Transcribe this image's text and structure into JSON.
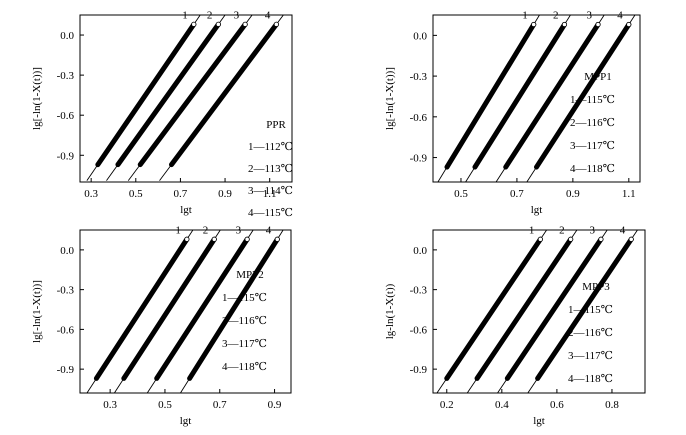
{
  "chart_data": [
    {
      "type": "line",
      "xlim": [
        0.25,
        1.2
      ],
      "ylim": [
        -1.1,
        0.15
      ],
      "xticks": [
        0.3,
        0.5,
        0.7,
        0.9,
        1.1
      ],
      "xtick_labels": [
        "0.3",
        "0.5",
        "0.7",
        "0.9",
        "1.1"
      ],
      "yticks": [
        0.0,
        -0.3,
        -0.6,
        -0.9
      ],
      "ytick_labels": [
        "0.0",
        "-0.3",
        "-0.6",
        "-0.9"
      ],
      "xlabel": "lgt",
      "ylabel": "lg[-ln(1-X(t))]",
      "legend_title": "PPR",
      "legend": [
        "1—112℃",
        "2—113℃",
        "3—114℃",
        "4—115℃"
      ],
      "series": [
        {
          "name": "1",
          "x": [
            0.33,
            0.76
          ],
          "y": [
            -0.97,
            0.08
          ]
        },
        {
          "name": "2",
          "x": [
            0.42,
            0.87
          ],
          "y": [
            -0.97,
            0.08
          ]
        },
        {
          "name": "3",
          "x": [
            0.52,
            0.99
          ],
          "y": [
            -0.97,
            0.08
          ]
        },
        {
          "name": "4",
          "x": [
            0.66,
            1.13
          ],
          "y": [
            -0.97,
            0.08
          ]
        }
      ]
    },
    {
      "type": "line",
      "xlim": [
        0.4,
        1.14
      ],
      "ylim": [
        -1.08,
        0.15
      ],
      "xticks": [
        0.5,
        0.7,
        0.9,
        1.1
      ],
      "xtick_labels": [
        "0.5",
        "0.7",
        "0.9",
        "1.1"
      ],
      "yticks": [
        0.0,
        -0.3,
        -0.6,
        -0.9
      ],
      "ytick_labels": [
        "0.0",
        "-0.3",
        "-0.6",
        "-0.9"
      ],
      "xlabel": "lgt",
      "ylabel": "lg[-ln(1-X(t))]",
      "legend_title": "MPP1",
      "legend": [
        "1—115℃",
        "2—116℃",
        "3—117℃",
        "4—118℃"
      ],
      "series": [
        {
          "name": "1",
          "x": [
            0.45,
            0.76
          ],
          "y": [
            -0.97,
            0.08
          ]
        },
        {
          "name": "2",
          "x": [
            0.55,
            0.87
          ],
          "y": [
            -0.97,
            0.08
          ]
        },
        {
          "name": "3",
          "x": [
            0.66,
            0.99
          ],
          "y": [
            -0.97,
            0.08
          ]
        },
        {
          "name": "4",
          "x": [
            0.77,
            1.1
          ],
          "y": [
            -0.97,
            0.08
          ]
        }
      ]
    },
    {
      "type": "line",
      "xlim": [
        0.19,
        0.96
      ],
      "ylim": [
        -1.08,
        0.15
      ],
      "xticks": [
        0.3,
        0.5,
        0.7,
        0.9
      ],
      "xtick_labels": [
        "0.3",
        "0.5",
        "0.7",
        "0.9"
      ],
      "yticks": [
        0.0,
        -0.3,
        -0.6,
        -0.9
      ],
      "ytick_labels": [
        "0.0",
        "-0.3",
        "-0.6",
        "-0.9"
      ],
      "xlabel": "lgt",
      "ylabel": "lg[-ln(1-X(t))]",
      "legend_title": "MPP2",
      "legend": [
        "1—115℃",
        "2—116℃",
        "3—117℃",
        "4—118℃"
      ],
      "series": [
        {
          "name": "1",
          "x": [
            0.25,
            0.58
          ],
          "y": [
            -0.97,
            0.08
          ]
        },
        {
          "name": "2",
          "x": [
            0.35,
            0.68
          ],
          "y": [
            -0.97,
            0.08
          ]
        },
        {
          "name": "3",
          "x": [
            0.47,
            0.8
          ],
          "y": [
            -0.97,
            0.08
          ]
        },
        {
          "name": "4",
          "x": [
            0.59,
            0.91
          ],
          "y": [
            -0.97,
            0.08
          ]
        }
      ]
    },
    {
      "type": "line",
      "xlim": [
        0.15,
        0.92
      ],
      "ylim": [
        -1.08,
        0.15
      ],
      "xticks": [
        0.2,
        0.4,
        0.6,
        0.8
      ],
      "xtick_labels": [
        "0.2",
        "0.4",
        "0.6",
        "0.8"
      ],
      "yticks": [
        0.0,
        -0.3,
        -0.6,
        -0.9
      ],
      "ytick_labels": [
        "0.0",
        "-0.3",
        "-0.6",
        "-0.9"
      ],
      "xlabel": "lgt",
      "ylabel": "lg-ln(1-X(t))",
      "legend_title": "MPP3",
      "legend": [
        "1—115℃",
        "2—116℃",
        "3—117℃",
        "4—118℃"
      ],
      "series": [
        {
          "name": "1",
          "x": [
            0.2,
            0.54
          ],
          "y": [
            -0.97,
            0.08
          ]
        },
        {
          "name": "2",
          "x": [
            0.31,
            0.65
          ],
          "y": [
            -0.97,
            0.08
          ]
        },
        {
          "name": "3",
          "x": [
            0.42,
            0.76
          ],
          "y": [
            -0.97,
            0.08
          ]
        },
        {
          "name": "4",
          "x": [
            0.53,
            0.87
          ],
          "y": [
            -0.97,
            0.08
          ]
        }
      ]
    }
  ]
}
